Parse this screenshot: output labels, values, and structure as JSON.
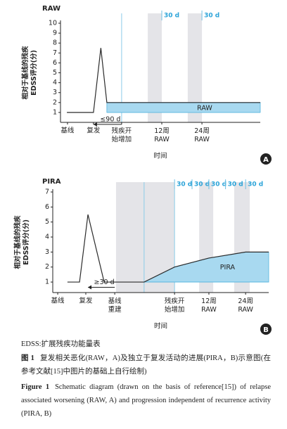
{
  "chart_data": [
    {
      "type": "line",
      "title": "RAW",
      "badge": "A",
      "ylabel": "相对于基线的残疾\nEDSS评分(分)",
      "xlabel": "时间",
      "xlim": [
        0,
        100
      ],
      "ylim": [
        0,
        10
      ],
      "yticks": [
        1,
        2,
        3,
        4,
        5,
        6,
        7,
        8,
        9,
        10
      ],
      "xticks": [
        {
          "value": 3.5,
          "label": "基线"
        },
        {
          "value": 16.5,
          "label": "复发"
        },
        {
          "value": 30.6,
          "label": "残疾开\n始增加"
        },
        {
          "value": 50.7,
          "label": "12周\nRAW"
        },
        {
          "value": 70.8,
          "label": "24周\nRAW"
        }
      ],
      "line": {
        "x": [
          3.2,
          16.5,
          20.2,
          23.2,
          100
        ],
        "values": [
          1,
          1,
          7.5,
          2,
          2
        ],
        "color": "#2b2b2b"
      },
      "area": {
        "label": "RAW",
        "x": [
          23.2,
          100
        ],
        "values": [
          2,
          2
        ],
        "base": 1,
        "color": "#a8d9f0"
      },
      "bands": [
        [
          43.7,
          50.7
        ],
        [
          63.7,
          70.8
        ]
      ],
      "band_color": "#e4e4e8",
      "band_labels": [
        {
          "x": 50.7,
          "label": "30 d"
        },
        {
          "x": 70.8,
          "label": "30 d"
        }
      ],
      "vlines": [
        30.6
      ],
      "interval": {
        "label": "≤90 d",
        "x": [
          16.5,
          30.6
        ],
        "y": -0.2
      }
    },
    {
      "type": "line",
      "title": "PIRA",
      "badge": "B",
      "ylabel": "相对于基线的残疾\nEDSS评分(分)",
      "xlabel": "时间",
      "xlim": [
        0,
        100
      ],
      "ylim": [
        0.3,
        7
      ],
      "yticks": [
        1,
        2,
        3,
        4,
        5,
        6,
        7
      ],
      "xticks": [
        {
          "value": 2.3,
          "label": "基线"
        },
        {
          "value": 15.3,
          "label": "复发"
        },
        {
          "value": 28.7,
          "label": "基线\n重建"
        },
        {
          "value": 56.4,
          "label": "残疾开\n始增加"
        },
        {
          "value": 72.3,
          "label": "12周\nRAW"
        },
        {
          "value": 89.3,
          "label": "24周\nRAW"
        }
      ],
      "line": {
        "x": [
          6.8,
          12.4,
          16.3,
          23.8,
          42.3,
          56.4,
          72.3,
          89.3,
          100
        ],
        "values": [
          1,
          1,
          5.5,
          1,
          1,
          2,
          2.6,
          3,
          3
        ],
        "color": "#2b2b2b"
      },
      "area": {
        "label": "PIRA",
        "x": [
          42.3,
          56.4,
          72.3,
          89.3,
          100
        ],
        "values": [
          1,
          2,
          2.6,
          3,
          3
        ],
        "base": 1,
        "color": "#a8d9f0"
      },
      "bands": [
        [
          29.3,
          56.4
        ],
        [
          67.8,
          74.3
        ],
        [
          84,
          91.2
        ]
      ],
      "band_color": "#e4e4e8",
      "band_labels": [
        {
          "x": 56.4,
          "label": "30 d"
        },
        {
          "x": 64.5,
          "label": "30 d"
        },
        {
          "x": 72.3,
          "label": "30 d"
        },
        {
          "x": 80,
          "label": "30 d"
        },
        {
          "x": 89.3,
          "label": "30 d"
        }
      ],
      "vlines": [
        42.3,
        56.4
      ],
      "interval": {
        "label": "≥30 d",
        "x": [
          16.3,
          28.7
        ],
        "y": 0.65
      }
    }
  ],
  "caption": {
    "note": "EDSS:扩展残疾功能量表",
    "zh": {
      "label": "图 1",
      "text": "复发相关恶化(RAW，A)及独立于复发活动的进展(PIRA，B)示意图(在参考文献[15]中图片的基础上自行绘制)"
    },
    "en": {
      "label": "Figure 1",
      "text": "Schematic diagram (drawn on the basis of reference[15]) of relapse associated worsening (RAW, A) and progression independent of recurrence activity (PIRA, B)"
    }
  }
}
